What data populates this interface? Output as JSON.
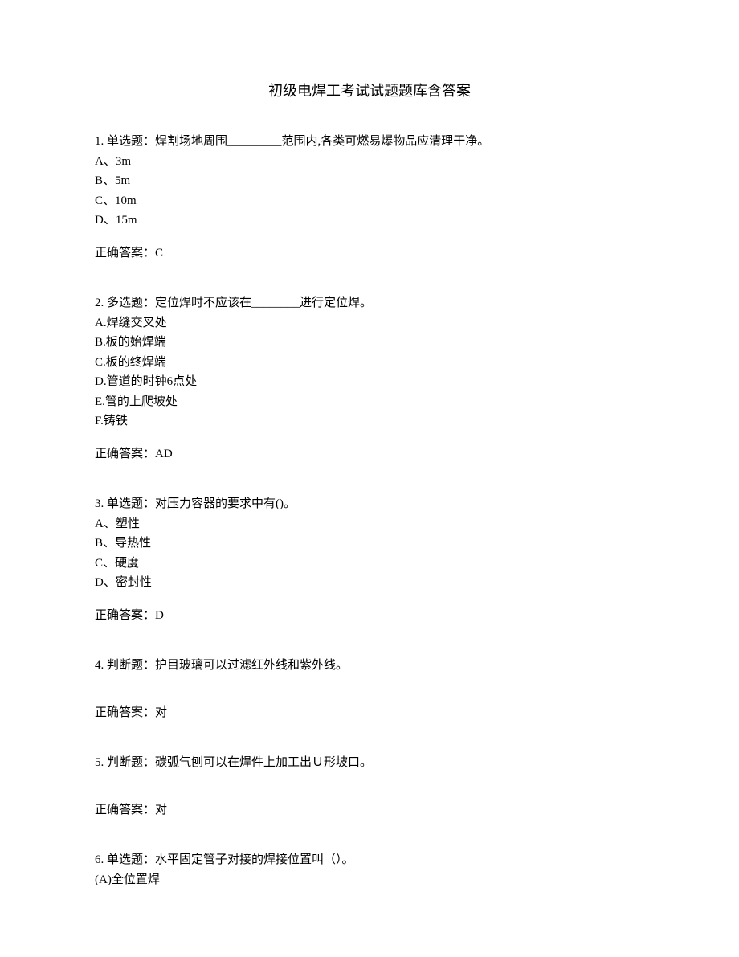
{
  "title": "初级电焊工考试试题题库含答案",
  "questions": [
    {
      "number": "1.",
      "type": "单选题：",
      "text": "焊割场地周围_________范围内,各类可燃易爆物品应清理干净。",
      "options": [
        "A、3m",
        "B、5m",
        "C、10m",
        "D、15m"
      ],
      "answer_label": "正确答案：",
      "answer": "C"
    },
    {
      "number": "2.",
      "type": "多选题：",
      "text": "定位焊时不应该在________进行定位焊。",
      "options": [
        "A.焊缝交叉处",
        "B.板的始焊端",
        "C.板的终焊端",
        "D.管道的时钟6点处",
        "E.管的上爬坡处",
        "F.铸铁"
      ],
      "answer_label": "正确答案：",
      "answer": "AD"
    },
    {
      "number": "3.",
      "type": "单选题：",
      "text": "对压力容器的要求中有()。",
      "options": [
        "A、塑性",
        "B、导热性",
        "C、硬度",
        "D、密封性"
      ],
      "answer_label": "正确答案：",
      "answer": "D"
    },
    {
      "number": "4.",
      "type": "判断题：",
      "text": "护目玻璃可以过滤红外线和紫外线。",
      "options": [],
      "answer_label": "正确答案：",
      "answer": "对"
    },
    {
      "number": "5.",
      "type": "判断题：",
      "text": "碳弧气刨可以在焊件上加工出Ｕ形坡口。",
      "options": [],
      "answer_label": "正确答案：",
      "answer": "对"
    },
    {
      "number": "6.",
      "type": "单选题：",
      "text": "水平固定管子对接的焊接位置叫（）。",
      "options": [
        "(A)全位置焊"
      ],
      "answer_label": "",
      "answer": ""
    }
  ]
}
